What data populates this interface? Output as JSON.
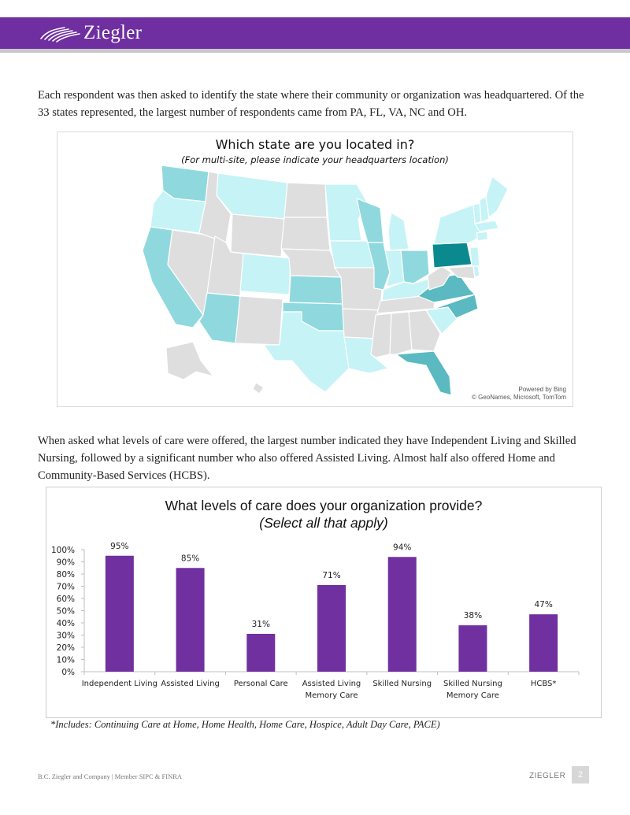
{
  "header": {
    "brand": "Ziegler"
  },
  "intro_paragraph": "Each respondent was then asked to identify the state where their community or organization was headquartered. Of the 33 states represented, the largest number of respondents came from PA, FL, VA, NC and OH.",
  "map": {
    "title": "Which state are you located in?",
    "subtitle": "(For multi-site, please indicate your headquarters location)",
    "credit_line1": "Powered by Bing",
    "credit_line2": "© GeoNames, Microsoft, TomTom",
    "colors": {
      "none": "#dedede",
      "light": "#c6f3f6",
      "medium": "#8fd9de",
      "dark": "#5ab9c1",
      "darkest": "#0a8a8f"
    }
  },
  "care_paragraph": "When asked what levels of care were offered, the largest number indicated they have Independent Living and Skilled Nursing, followed by a significant number who also offered Assisted Living. Almost half also offered Home and Community-Based Services (HCBS).",
  "chart_data": {
    "type": "bar",
    "title": "What levels of care does your organization provide?",
    "subtitle": "(Select all that apply)",
    "categories": [
      [
        "Independent Living"
      ],
      [
        "Assisted Living"
      ],
      [
        "Personal Care"
      ],
      [
        "Assisted Living",
        "Memory Care"
      ],
      [
        "Skilled Nursing"
      ],
      [
        "Skilled Nursing",
        "Memory Care"
      ],
      [
        "HCBS*"
      ]
    ],
    "values": [
      95,
      85,
      31,
      71,
      94,
      38,
      47
    ],
    "value_labels": [
      "95%",
      "85%",
      "31%",
      "71%",
      "94%",
      "38%",
      "47%"
    ],
    "ylim": [
      0,
      100
    ],
    "yticks": [
      "0%",
      "10%",
      "20%",
      "30%",
      "40%",
      "50%",
      "60%",
      "70%",
      "80%",
      "90%",
      "100%"
    ],
    "bar_color": "#7030a0",
    "grid": false
  },
  "footnote": "*Includes: Continuing Care at Home, Home Health, Home Care, Hospice, Adult Day Care, PACE)",
  "footer": {
    "left": "B.C. Ziegler and Company | Member SIPC & FINRA",
    "brand": "ZIEGLER",
    "page": "2"
  }
}
